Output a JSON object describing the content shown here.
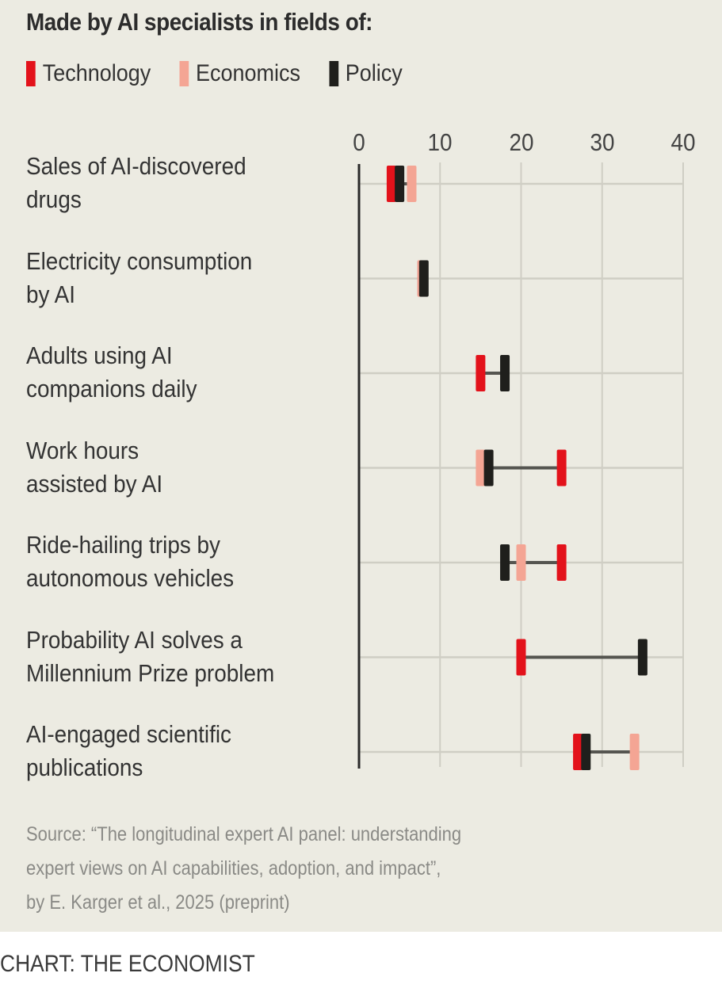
{
  "chart_data": {
    "type": "dot-range",
    "title": "Made by AI specialists in fields of:",
    "xlabel": "",
    "ylabel": "",
    "xlim": [
      0,
      40
    ],
    "x_ticks": [
      0,
      10,
      20,
      30,
      40
    ],
    "grid": true,
    "legend_placement": "top-left",
    "series": [
      {
        "name": "Technology",
        "color": "#e3121b"
      },
      {
        "name": "Economics",
        "color": "#f4a594"
      },
      {
        "name": "Policy",
        "color": "#1f1f1c"
      }
    ],
    "categories": [
      "Sales of AI-discovered\ndrugs",
      "Electricity consumption\nby AI",
      "Adults using AI\ncompanions daily",
      "Work hours\nassisted by AI",
      "Ride-hailing trips by\nautonomous vehicles",
      "Probability AI solves a\nMillennium Prize problem",
      "AI-engaged scientific\npublications"
    ],
    "values": [
      {
        "Technology": 4,
        "Economics": 6.5,
        "Policy": 5
      },
      {
        "Technology": 7.8,
        "Economics": 7.8,
        "Policy": 8
      },
      {
        "Technology": 15,
        "Economics": null,
        "Policy": 18
      },
      {
        "Technology": 25,
        "Economics": 15,
        "Policy": 16
      },
      {
        "Technology": 25,
        "Economics": 20,
        "Policy": 18
      },
      {
        "Technology": 20,
        "Economics": null,
        "Policy": 35
      },
      {
        "Technology": 27,
        "Economics": 34,
        "Policy": 28
      }
    ]
  },
  "source": "Source: “The longitudinal expert AI panel: understanding\nexpert views on AI capabilities, adoption, and impact”,\nby E. Karger et al., 2025 (preprint)",
  "credit": "CHART: THE ECONOMIST"
}
